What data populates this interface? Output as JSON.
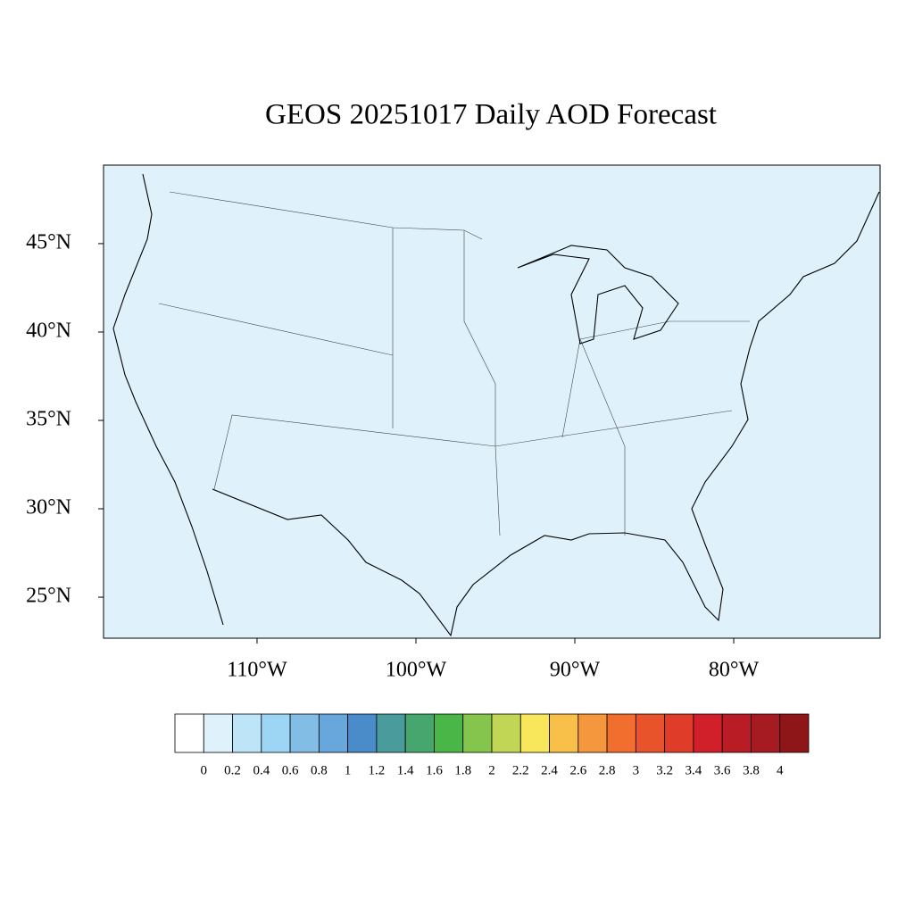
{
  "chart_data": {
    "type": "contour-map",
    "title": "GEOS 20251017 Daily AOD Forecast",
    "xlim": [
      -119.66,
      -70.79
    ],
    "ylim": [
      22.68,
      49.44
    ],
    "xticks": [
      {
        "value": -110,
        "label": "110°W"
      },
      {
        "value": -100,
        "label": "100°W"
      },
      {
        "value": -90,
        "label": "90°W"
      },
      {
        "value": -80,
        "label": "80°W"
      }
    ],
    "yticks": [
      {
        "value": 25,
        "label": "25°N"
      },
      {
        "value": 30,
        "label": "30°N"
      },
      {
        "value": 35,
        "label": "35°N"
      },
      {
        "value": 40,
        "label": "40°N"
      },
      {
        "value": 45,
        "label": "45°N"
      }
    ],
    "colorbar": {
      "levels": [
        0,
        0.2,
        0.4,
        0.6,
        0.8,
        1,
        1.2,
        1.4,
        1.6,
        1.8,
        2,
        2.2,
        2.4,
        2.6,
        2.8,
        3,
        3.2,
        3.4,
        3.6,
        3.8,
        4
      ],
      "colors": [
        "#ffffff",
        "#dff2fb",
        "#bde5f7",
        "#9dd6f4",
        "#82bde6",
        "#67a7dc",
        "#4a8bc9",
        "#4a9b9c",
        "#47a56e",
        "#4bb648",
        "#86c54d",
        "#c2d655",
        "#f8e75a",
        "#f8bf49",
        "#f4973d",
        "#f26e2e",
        "#e9532b",
        "#e03c2a",
        "#d12029",
        "#b91c25",
        "#a61b22",
        "#8f1618"
      ]
    }
  }
}
